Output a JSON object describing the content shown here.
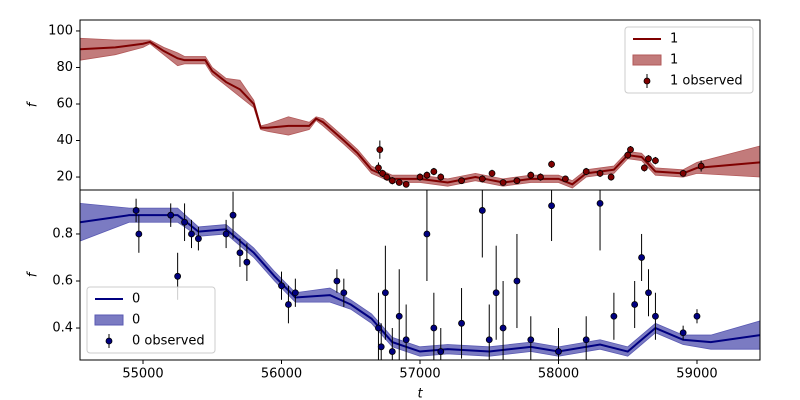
{
  "chart_data": [
    {
      "type": "line",
      "ylabel": "f",
      "xlim": [
        54545,
        59455
      ],
      "ylim": [
        12.9,
        106
      ],
      "yticks": [
        20,
        40,
        60,
        80,
        100
      ],
      "legend": "upper right",
      "series": [
        {
          "name": "1",
          "type": "line",
          "color": "#7f0000",
          "x": [
            54545,
            54800,
            55000,
            55050,
            55150,
            55250,
            55300,
            55450,
            55500,
            55600,
            55700,
            55800,
            55850,
            55900,
            56050,
            56200,
            56250,
            56300,
            56450,
            56550,
            56650,
            56800,
            57000,
            57200,
            57400,
            57600,
            57800,
            58000,
            58100,
            58200,
            58400,
            58500,
            58600,
            58700,
            58900,
            59000,
            59455
          ],
          "values": [
            90,
            91,
            93,
            94,
            89,
            85,
            84,
            84,
            78,
            72,
            68,
            60,
            47,
            47,
            48,
            48,
            52,
            50,
            40,
            33,
            24,
            19,
            19,
            17,
            20,
            17,
            19,
            19,
            16,
            22,
            24,
            32,
            31,
            23,
            22,
            25,
            28
          ]
        },
        {
          "name": "1",
          "type": "band",
          "color": "#b35a5a",
          "x": [
            54545,
            54800,
            55000,
            55050,
            55150,
            55250,
            55300,
            55450,
            55500,
            55600,
            55700,
            55800,
            55850,
            55900,
            56050,
            56200,
            56250,
            56300,
            56450,
            56550,
            56650,
            56800,
            57000,
            57200,
            57400,
            57600,
            57800,
            58000,
            58100,
            58200,
            58400,
            58500,
            58600,
            58700,
            58900,
            59000,
            59455
          ],
          "lower": [
            84,
            87,
            91,
            93,
            87,
            81,
            82,
            82,
            76,
            70,
            64,
            58,
            46,
            45,
            43,
            46,
            51,
            48,
            38,
            31,
            22,
            17,
            17,
            15,
            18,
            15,
            17,
            17,
            14,
            20,
            22,
            30,
            29,
            21,
            20,
            22,
            20
          ],
          "upper": [
            96,
            95,
            95,
            95,
            91,
            88,
            86,
            86,
            80,
            74,
            73,
            62,
            48,
            49,
            53,
            50,
            53,
            52,
            42,
            35,
            26,
            21,
            21,
            19,
            22,
            19,
            21,
            21,
            18,
            24,
            26,
            34,
            33,
            25,
            24,
            28,
            37
          ]
        },
        {
          "name": "1 observed",
          "type": "errorbar",
          "color": "#7f0000",
          "x": [
            56700,
            56710,
            56730,
            56760,
            56800,
            56850,
            56900,
            57000,
            57050,
            57100,
            57150,
            57300,
            57450,
            57520,
            57600,
            57700,
            57800,
            57870,
            57950,
            58050,
            58200,
            58300,
            58380,
            58500,
            58520,
            58620,
            58650,
            58700,
            58900,
            59030
          ],
          "values": [
            25,
            35,
            22,
            20,
            18,
            17,
            16,
            20,
            21,
            23,
            20,
            18,
            19,
            22,
            17,
            18,
            21,
            20,
            27,
            19,
            23,
            22,
            20,
            32,
            35,
            25,
            30,
            29,
            22,
            26
          ],
          "errors": [
            3,
            5,
            2,
            2,
            2,
            1.5,
            1,
            2,
            2,
            2,
            2,
            1,
            2,
            2,
            1,
            1,
            2,
            2,
            2,
            1,
            2,
            2,
            2,
            2,
            2,
            2,
            2,
            2,
            1,
            3
          ]
        }
      ]
    },
    {
      "type": "line",
      "ylabel": "f",
      "xlabel": "t",
      "xlim": [
        54545,
        59455
      ],
      "xticks": [
        55000,
        56000,
        57000,
        58000,
        59000
      ],
      "ylim": [
        0.264,
        0.987
      ],
      "yticks": [
        0.4,
        0.6,
        0.8
      ],
      "legend": "lower left",
      "series": [
        {
          "name": "0",
          "type": "line",
          "color": "#000080",
          "x": [
            54545,
            54900,
            55250,
            55400,
            55600,
            55800,
            55950,
            56100,
            56350,
            56500,
            56650,
            56800,
            57000,
            57200,
            57500,
            57800,
            58000,
            58300,
            58500,
            58700,
            58900,
            59100,
            59455
          ],
          "values": [
            0.85,
            0.88,
            0.88,
            0.81,
            0.82,
            0.72,
            0.62,
            0.53,
            0.54,
            0.5,
            0.44,
            0.34,
            0.3,
            0.31,
            0.3,
            0.32,
            0.3,
            0.33,
            0.3,
            0.4,
            0.35,
            0.34,
            0.37
          ]
        },
        {
          "name": "0",
          "type": "band",
          "color": "#5a5ab3",
          "x": [
            54545,
            54900,
            55250,
            55400,
            55600,
            55800,
            55950,
            56100,
            56350,
            56500,
            56650,
            56800,
            57000,
            57200,
            57500,
            57800,
            58000,
            58300,
            58500,
            58700,
            58900,
            59100,
            59455
          ],
          "lower": [
            0.77,
            0.85,
            0.85,
            0.79,
            0.8,
            0.7,
            0.6,
            0.51,
            0.51,
            0.48,
            0.42,
            0.32,
            0.28,
            0.29,
            0.28,
            0.3,
            0.28,
            0.31,
            0.28,
            0.38,
            0.33,
            0.31,
            0.31
          ],
          "upper": [
            0.93,
            0.91,
            0.91,
            0.83,
            0.84,
            0.74,
            0.64,
            0.55,
            0.57,
            0.52,
            0.46,
            0.36,
            0.32,
            0.33,
            0.32,
            0.34,
            0.32,
            0.35,
            0.32,
            0.42,
            0.37,
            0.37,
            0.43
          ]
        },
        {
          "name": "0 observed",
          "type": "errorbar",
          "color": "#000080",
          "x": [
            54950,
            54970,
            55200,
            55250,
            55300,
            55350,
            55400,
            55600,
            55650,
            55700,
            55750,
            56000,
            56050,
            56100,
            56400,
            56450,
            56700,
            56720,
            56750,
            56800,
            56850,
            56900,
            57050,
            57100,
            57150,
            57300,
            57450,
            57500,
            57550,
            57600,
            57700,
            57800,
            57950,
            58000,
            58200,
            58300,
            58400,
            58550,
            58600,
            58650,
            58700,
            58900,
            59000
          ],
          "values": [
            0.9,
            0.8,
            0.88,
            0.62,
            0.85,
            0.8,
            0.78,
            0.8,
            0.88,
            0.72,
            0.68,
            0.58,
            0.5,
            0.55,
            0.6,
            0.55,
            0.4,
            0.32,
            0.55,
            0.3,
            0.45,
            0.35,
            0.8,
            0.4,
            0.3,
            0.42,
            0.9,
            0.35,
            0.55,
            0.4,
            0.6,
            0.35,
            0.92,
            0.3,
            0.35,
            0.93,
            0.45,
            0.5,
            0.7,
            0.55,
            0.45,
            0.38,
            0.45
          ],
          "errors": [
            0.05,
            0.08,
            0.05,
            0.1,
            0.08,
            0.06,
            0.05,
            0.06,
            0.1,
            0.06,
            0.08,
            0.06,
            0.08,
            0.06,
            0.05,
            0.06,
            0.15,
            0.1,
            0.2,
            0.1,
            0.2,
            0.15,
            0.2,
            0.15,
            0.1,
            0.15,
            0.2,
            0.15,
            0.2,
            0.2,
            0.2,
            0.1,
            0.15,
            0.1,
            0.1,
            0.2,
            0.1,
            0.1,
            0.1,
            0.1,
            0.1,
            0.03,
            0.03
          ]
        }
      ]
    }
  ]
}
